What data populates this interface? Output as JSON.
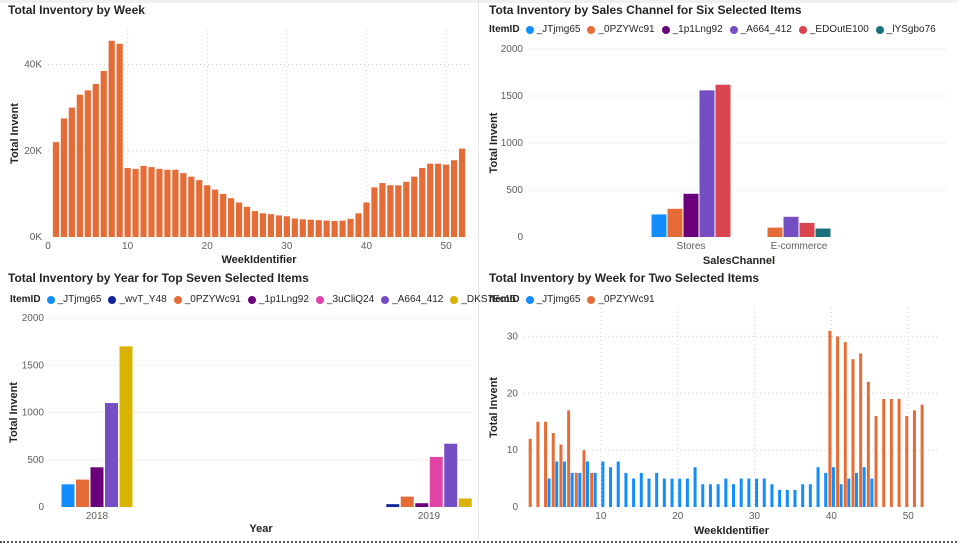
{
  "colors": {
    "orange": "#E66C37",
    "blue": "#118DFF",
    "navy": "#12239E",
    "purple": "#6B007B",
    "pink": "#E044A7",
    "violet": "#744EC2",
    "red": "#D9444E",
    "teal": "#197278",
    "gold": "#D9B300"
  },
  "chart_data": [
    {
      "type": "bar",
      "title": "Total Inventory by Week",
      "xlabel": "WeekIdentifier",
      "ylabel": "Total Invent",
      "x": [
        1,
        2,
        3,
        4,
        5,
        6,
        7,
        8,
        9,
        10,
        11,
        12,
        13,
        14,
        15,
        16,
        17,
        18,
        19,
        20,
        21,
        22,
        23,
        24,
        25,
        26,
        27,
        28,
        29,
        30,
        31,
        32,
        33,
        34,
        35,
        36,
        37,
        38,
        39,
        40,
        41,
        42,
        43,
        44,
        45,
        46,
        47,
        48,
        49,
        50,
        51,
        52
      ],
      "values": [
        22000,
        27500,
        30000,
        33000,
        34000,
        35500,
        38500,
        45500,
        44800,
        16000,
        15800,
        16500,
        16200,
        15800,
        15600,
        15600,
        14800,
        14000,
        13200,
        12000,
        11000,
        10000,
        9000,
        8000,
        7000,
        6000,
        5500,
        5300,
        5000,
        4800,
        4300,
        4100,
        4000,
        3900,
        3800,
        3700,
        3800,
        4200,
        5500,
        8000,
        11500,
        12500,
        12000,
        12000,
        12800,
        14000,
        16000,
        17000,
        17000,
        16800,
        17800,
        20500
      ],
      "xticks": [
        0,
        10,
        20,
        30,
        40,
        50
      ],
      "yticks": [
        0,
        20000,
        40000
      ],
      "ytick_labels": [
        "0K",
        "20K",
        "40K"
      ],
      "xlim": [
        0,
        53
      ],
      "ylim": [
        0,
        48000
      ],
      "grid": true
    },
    {
      "type": "bar",
      "title": "Tota Inventory by Sales Channel for Six Selected Items",
      "xlabel": "SalesChannel",
      "ylabel": "Total Invent",
      "legend_title": "ItemID",
      "legend_placement": "top",
      "categories": [
        "Stores",
        "E-commerce"
      ],
      "series": [
        {
          "name": "_JTjmg65",
          "color": "#118DFF",
          "values": [
            240,
            null
          ]
        },
        {
          "name": "_0PZYWc91",
          "color": "#E66C37",
          "values": [
            300,
            100
          ]
        },
        {
          "name": "_1p1Lng92",
          "color": "#6B007B",
          "values": [
            460,
            null
          ]
        },
        {
          "name": "_A664_412",
          "color": "#744EC2",
          "values": [
            1560,
            215
          ]
        },
        {
          "name": "_EDOutE100",
          "color": "#D9444E",
          "values": [
            1620,
            150
          ]
        },
        {
          "name": "_lYSgbo76",
          "color": "#197278",
          "values": [
            null,
            90
          ]
        }
      ],
      "yticks": [
        0,
        500,
        1000,
        1500,
        2000
      ],
      "ylim": [
        0,
        2000
      ],
      "grid": true
    },
    {
      "type": "bar",
      "title": "Total Inventory by Year for Top Seven Selected Items",
      "xlabel": "Year",
      "ylabel": "Total Invent",
      "legend_title": "ItemID",
      "legend_placement": "top",
      "categories": [
        "2018",
        "2019"
      ],
      "series": [
        {
          "name": "_JTjmg65",
          "color": "#118DFF",
          "values": [
            240,
            null
          ]
        },
        {
          "name": "_wvT_Y48",
          "color": "#12239E",
          "values": [
            null,
            30
          ]
        },
        {
          "name": "_0PZYWc91",
          "color": "#E66C37",
          "values": [
            290,
            110
          ]
        },
        {
          "name": "_1p1Lng92",
          "color": "#6B007B",
          "values": [
            420,
            40
          ]
        },
        {
          "name": "_3uCliQ24",
          "color": "#E044A7",
          "values": [
            null,
            530
          ]
        },
        {
          "name": "_A664_412",
          "color": "#744EC2",
          "values": [
            1100,
            670
          ]
        },
        {
          "name": "_DKS7Ec15",
          "color": "#D9B300",
          "values": [
            1700,
            90
          ]
        }
      ],
      "yticks": [
        0,
        500,
        1000,
        1500,
        2000
      ],
      "ylim": [
        0,
        2000
      ],
      "grid": true
    },
    {
      "type": "bar",
      "title": "Total Inventory by Week for Two Selected Items",
      "xlabel": "WeekIdentifier",
      "ylabel": "Total Invent",
      "legend_title": "ItemID",
      "legend_placement": "top",
      "x": [
        1,
        2,
        3,
        4,
        5,
        6,
        7,
        8,
        9,
        10,
        11,
        12,
        13,
        14,
        15,
        16,
        17,
        18,
        19,
        20,
        21,
        22,
        23,
        24,
        25,
        26,
        27,
        28,
        29,
        30,
        31,
        32,
        33,
        34,
        35,
        36,
        37,
        38,
        39,
        40,
        41,
        42,
        43,
        44,
        45,
        46,
        47,
        48,
        49,
        50,
        51,
        52
      ],
      "series": [
        {
          "name": "_JTjmg65",
          "color": "#118DFF",
          "values": [
            null,
            null,
            5,
            8,
            8,
            6,
            6,
            8,
            6,
            8,
            7,
            8,
            6,
            5,
            6,
            5,
            6,
            5,
            5,
            5,
            5,
            7,
            4,
            4,
            4,
            5,
            4,
            5,
            5,
            5,
            5,
            4,
            3,
            3,
            3,
            4,
            4,
            7,
            6,
            7,
            4,
            5,
            6,
            7,
            5,
            null,
            null,
            null,
            null,
            null,
            null,
            null
          ]
        },
        {
          "name": "_0PZYWc91",
          "color": "#E66C37",
          "values": [
            12,
            15,
            15,
            13,
            11,
            17,
            6,
            10,
            6,
            null,
            null,
            null,
            null,
            null,
            null,
            null,
            null,
            null,
            null,
            null,
            null,
            null,
            null,
            null,
            null,
            null,
            null,
            null,
            null,
            null,
            null,
            null,
            null,
            null,
            null,
            null,
            null,
            null,
            null,
            31,
            30,
            29,
            26,
            27,
            22,
            16,
            19,
            19,
            19,
            16,
            17,
            18
          ]
        }
      ],
      "xticks": [
        10,
        20,
        30,
        40,
        50
      ],
      "yticks": [
        0,
        10,
        20,
        30
      ],
      "xlim": [
        0,
        54
      ],
      "ylim": [
        0,
        35
      ],
      "grid": true
    }
  ]
}
